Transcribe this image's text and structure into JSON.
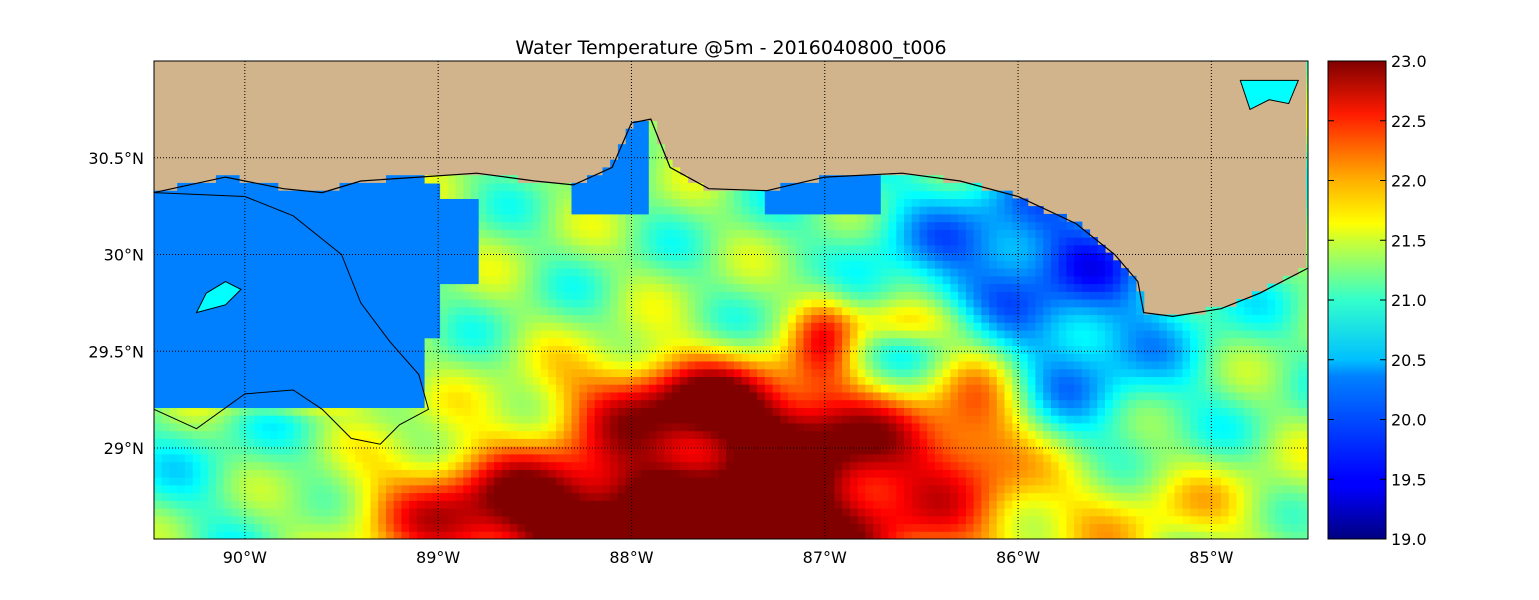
{
  "title": "Water Temperature @5m - 2016040800_t006",
  "colors": {
    "land": "#d2b48c",
    "unmodeled_water": "#0080ff",
    "lake": "#00ffff",
    "coast": "#000000",
    "grid": "#000000"
  },
  "map": {
    "lon_range": [
      -90.47,
      -84.5
    ],
    "lat_range": [
      28.53,
      31.0
    ],
    "projection": "cylindrical",
    "grid": "dotted"
  },
  "longitude_ticks": [
    {
      "value": -90,
      "label": "90°W"
    },
    {
      "value": -89,
      "label": "89°W"
    },
    {
      "value": -88,
      "label": "88°W"
    },
    {
      "value": -87,
      "label": "87°W"
    },
    {
      "value": -86,
      "label": "86°W"
    },
    {
      "value": -85,
      "label": "85°W"
    }
  ],
  "latitude_ticks": [
    {
      "value": 30.5,
      "label": "30.5°N"
    },
    {
      "value": 30.0,
      "label": "30°N"
    },
    {
      "value": 29.5,
      "label": "29.5°N"
    },
    {
      "value": 29.0,
      "label": "29°N"
    }
  ],
  "colorbar": {
    "min": 19.0,
    "max": 23.0,
    "colormap": "jet",
    "ticks": [
      "19.0",
      "19.5",
      "20.0",
      "20.5",
      "21.0",
      "21.5",
      "22.0",
      "22.5",
      "23.0"
    ]
  }
}
